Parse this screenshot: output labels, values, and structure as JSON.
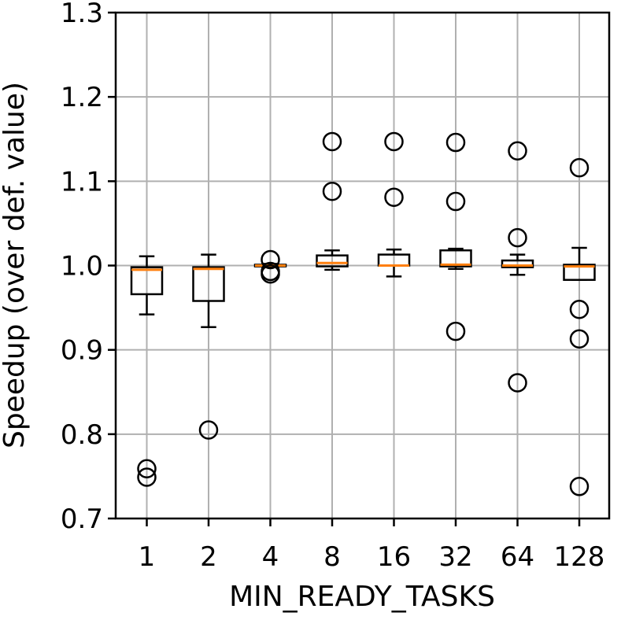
{
  "chart_data": {
    "type": "box",
    "title": "",
    "xlabel": "MIN_READY_TASKS",
    "ylabel": "Speedup (over def. value)",
    "ylim": [
      0.7,
      1.3
    ],
    "yticks": [
      0.7,
      0.8,
      0.9,
      1.0,
      1.1,
      1.2,
      1.3
    ],
    "ytick_labels": [
      "0.7",
      "0.8",
      "0.9",
      "1.0",
      "1.1",
      "1.2",
      "1.3"
    ],
    "grid": true,
    "categories": [
      "1",
      "2",
      "4",
      "8",
      "16",
      "32",
      "64",
      "128"
    ],
    "boxes": [
      {
        "category": "1",
        "whisker_low": 0.942,
        "q1": 0.966,
        "median": 0.995,
        "q3": 0.998,
        "whisker_high": 1.011,
        "outliers": [
          0.759,
          0.749
        ]
      },
      {
        "category": "2",
        "whisker_low": 0.927,
        "q1": 0.958,
        "median": 0.996,
        "q3": 0.998,
        "whisker_high": 1.013,
        "outliers": [
          0.805
        ]
      },
      {
        "category": "4",
        "whisker_low": 0.998,
        "q1": 0.999,
        "median": 1.0,
        "q3": 1.001,
        "whisker_high": 1.002,
        "outliers": [
          1.007,
          0.993,
          0.99
        ]
      },
      {
        "category": "8",
        "whisker_low": 0.995,
        "q1": 0.999,
        "median": 1.003,
        "q3": 1.012,
        "whisker_high": 1.018,
        "outliers": [
          1.147,
          1.088
        ]
      },
      {
        "category": "16",
        "whisker_low": 0.987,
        "q1": 1.0,
        "median": 1.0,
        "q3": 1.013,
        "whisker_high": 1.019,
        "outliers": [
          1.147,
          1.081
        ]
      },
      {
        "category": "32",
        "whisker_low": 0.996,
        "q1": 0.999,
        "median": 1.001,
        "q3": 1.018,
        "whisker_high": 1.02,
        "outliers": [
          1.146,
          1.076,
          0.922
        ]
      },
      {
        "category": "64",
        "whisker_low": 0.989,
        "q1": 0.998,
        "median": 1.0,
        "q3": 1.006,
        "whisker_high": 1.013,
        "outliers": [
          1.136,
          1.033,
          0.861
        ]
      },
      {
        "category": "128",
        "whisker_low": 0.983,
        "q1": 0.983,
        "median": 0.999,
        "q3": 1.001,
        "whisker_high": 1.021,
        "outliers": [
          1.116,
          0.948,
          0.913,
          0.738
        ]
      }
    ],
    "colors": {
      "box": "#000000",
      "median": "#ff7f0e",
      "grid": "#b0b0b0",
      "outlier": "#000000"
    }
  }
}
